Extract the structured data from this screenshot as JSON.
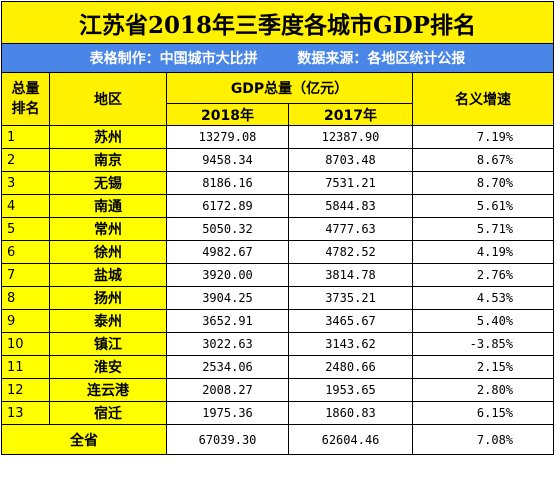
{
  "title": "江苏省2018年三季度各城市GDP排名",
  "subtitle": {
    "maker": "表格制作：中国城市大比拼",
    "source": "数据来源：各地区统计公报"
  },
  "headers": {
    "rank": "总量排名",
    "region": "地区",
    "gdp_total": "GDP总量（亿元）",
    "year_2018": "2018年",
    "year_2017": "2017年",
    "growth": "名义增速"
  },
  "rows": [
    {
      "rank": "1",
      "city": "苏州",
      "gdp2018": "13279.08",
      "gdp2017": "12387.90",
      "growth": "7.19%"
    },
    {
      "rank": "2",
      "city": "南京",
      "gdp2018": "9458.34",
      "gdp2017": "8703.48",
      "growth": "8.67%"
    },
    {
      "rank": "3",
      "city": "无锡",
      "gdp2018": "8186.16",
      "gdp2017": "7531.21",
      "growth": "8.70%"
    },
    {
      "rank": "4",
      "city": "南通",
      "gdp2018": "6172.89",
      "gdp2017": "5844.83",
      "growth": "5.61%"
    },
    {
      "rank": "5",
      "city": "常州",
      "gdp2018": "5050.32",
      "gdp2017": "4777.63",
      "growth": "5.71%"
    },
    {
      "rank": "6",
      "city": "徐州",
      "gdp2018": "4982.67",
      "gdp2017": "4782.52",
      "growth": "4.19%"
    },
    {
      "rank": "7",
      "city": "盐城",
      "gdp2018": "3920.00",
      "gdp2017": "3814.78",
      "growth": "2.76%"
    },
    {
      "rank": "8",
      "city": "扬州",
      "gdp2018": "3904.25",
      "gdp2017": "3735.21",
      "growth": "4.53%"
    },
    {
      "rank": "9",
      "city": "泰州",
      "gdp2018": "3652.91",
      "gdp2017": "3465.67",
      "growth": "5.40%"
    },
    {
      "rank": "10",
      "city": "镇江",
      "gdp2018": "3022.63",
      "gdp2017": "3143.62",
      "growth": "-3.85%"
    },
    {
      "rank": "11",
      "city": "淮安",
      "gdp2018": "2534.06",
      "gdp2017": "2480.66",
      "growth": "2.15%"
    },
    {
      "rank": "12",
      "city": "连云港",
      "gdp2018": "2008.27",
      "gdp2017": "1953.65",
      "growth": "2.80%"
    },
    {
      "rank": "13",
      "city": "宿迁",
      "gdp2018": "1975.36",
      "gdp2017": "1860.83",
      "growth": "6.15%"
    }
  ],
  "total": {
    "label": "全省",
    "gdp2018": "67039.30",
    "gdp2017": "62604.46",
    "growth": "7.08%"
  },
  "colors": {
    "title_bg": "#fff100",
    "subtitle_bg": "#4a86e8",
    "subtitle_text": "#ffffff",
    "cell_highlight": "#ffff00"
  }
}
